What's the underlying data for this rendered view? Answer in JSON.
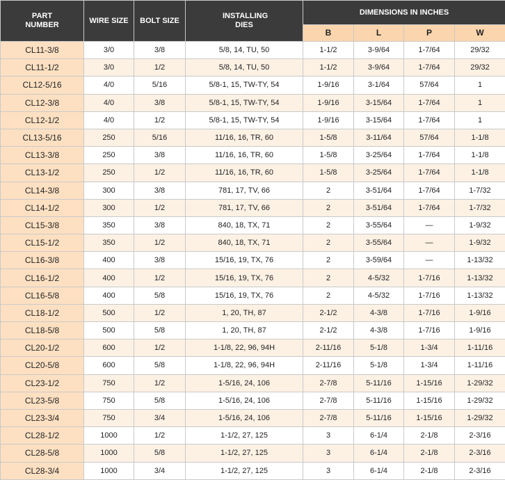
{
  "table": {
    "headers": [
      "PART NUMBER",
      "WIRE SIZE",
      "BOLT SIZE",
      "INSTALLING DIES"
    ],
    "group_header": "DIMENSIONS IN INCHES",
    "sub_headers": [
      "B",
      "L",
      "P",
      "W"
    ],
    "rows": [
      [
        "CL11-3/8",
        "3/0",
        "3/8",
        "5/8, 14, TU, 50",
        "1-1/2",
        "3-9/64",
        "1-7/64",
        "29/32"
      ],
      [
        "CL11-1/2",
        "3/0",
        "1/2",
        "5/8, 14, TU, 50",
        "1-1/2",
        "3-9/64",
        "1-7/64",
        "29/32"
      ],
      [
        "CL12-5/16",
        "4/0",
        "5/16",
        "5/8-1, 15, TW-TY, 54",
        "1-9/16",
        "3-1/64",
        "57/64",
        "1"
      ],
      [
        "CL12-3/8",
        "4/0",
        "3/8",
        "5/8-1, 15, TW-TY, 54",
        "1-9/16",
        "3-15/64",
        "1-7/64",
        "1"
      ],
      [
        "CL12-1/2",
        "4/0",
        "1/2",
        "5/8-1, 15, TW-TY, 54",
        "1-9/16",
        "3-15/64",
        "1-7/64",
        "1"
      ],
      [
        "CL13-5/16",
        "250",
        "5/16",
        "11/16, 16, TR, 60",
        "1-5/8",
        "3-11/64",
        "57/64",
        "1-1/8"
      ],
      [
        "CL13-3/8",
        "250",
        "3/8",
        "11/16, 16, TR, 60",
        "1-5/8",
        "3-25/64",
        "1-7/64",
        "1-1/8"
      ],
      [
        "CL13-1/2",
        "250",
        "1/2",
        "11/16, 16, TR, 60",
        "1-5/8",
        "3-25/64",
        "1-7/64",
        "1-1/8"
      ],
      [
        "CL14-3/8",
        "300",
        "3/8",
        "781, 17, TV, 66",
        "2",
        "3-51/64",
        "1-7/64",
        "1-7/32"
      ],
      [
        "CL14-1/2",
        "300",
        "1/2",
        "781, 17, TV, 66",
        "2",
        "3-51/64",
        "1-7/64",
        "1-7/32"
      ],
      [
        "CL15-3/8",
        "350",
        "3/8",
        "840, 18, TX, 71",
        "2",
        "3-55/64",
        "—",
        "1-9/32"
      ],
      [
        "CL15-1/2",
        "350",
        "1/2",
        "840, 18, TX, 71",
        "2",
        "3-55/64",
        "—",
        "1-9/32"
      ],
      [
        "CL16-3/8",
        "400",
        "3/8",
        "15/16, 19, TX, 76",
        "2",
        "3-59/64",
        "—",
        "1-13/32"
      ],
      [
        "CL16-1/2",
        "400",
        "1/2",
        "15/16, 19, TX, 76",
        "2",
        "4-5/32",
        "1-7/16",
        "1-13/32"
      ],
      [
        "CL16-5/8",
        "400",
        "5/8",
        "15/16, 19, TX, 76",
        "2",
        "4-5/32",
        "1-7/16",
        "1-13/32"
      ],
      [
        "CL18-1/2",
        "500",
        "1/2",
        "1, 20, TH, 87",
        "2-1/2",
        "4-3/8",
        "1-7/16",
        "1-9/16"
      ],
      [
        "CL18-5/8",
        "500",
        "5/8",
        "1, 20, TH, 87",
        "2-1/2",
        "4-3/8",
        "1-7/16",
        "1-9/16"
      ],
      [
        "CL20-1/2",
        "600",
        "1/2",
        "1-1/8, 22, 96, 94H",
        "2-11/16",
        "5-1/8",
        "1-3/4",
        "1-11/16"
      ],
      [
        "CL20-5/8",
        "600",
        "5/8",
        "1-1/8, 22, 96, 94H",
        "2-11/16",
        "5-1/8",
        "1-3/4",
        "1-11/16"
      ],
      [
        "CL23-1/2",
        "750",
        "1/2",
        "1-5/16, 24, 106",
        "2-7/8",
        "5-11/16",
        "1-15/16",
        "1-29/32"
      ],
      [
        "CL23-5/8",
        "750",
        "5/8",
        "1-5/16, 24, 106",
        "2-7/8",
        "5-11/16",
        "1-15/16",
        "1-29/32"
      ],
      [
        "CL23-3/4",
        "750",
        "3/4",
        "1-5/16, 24, 106",
        "2-7/8",
        "5-11/16",
        "1-15/16",
        "1-29/32"
      ],
      [
        "CL28-1/2",
        "1000",
        "1/2",
        "1-1/2, 27, 125",
        "3",
        "6-1/4",
        "2-1/8",
        "2-3/16"
      ],
      [
        "CL28-5/8",
        "1000",
        "5/8",
        "1-1/2, 27, 125",
        "3",
        "6-1/4",
        "2-1/8",
        "2-3/16"
      ],
      [
        "CL28-3/4",
        "1000",
        "3/4",
        "1-1/2, 27, 125",
        "3",
        "6-1/4",
        "2-1/8",
        "2-3/16"
      ]
    ]
  }
}
